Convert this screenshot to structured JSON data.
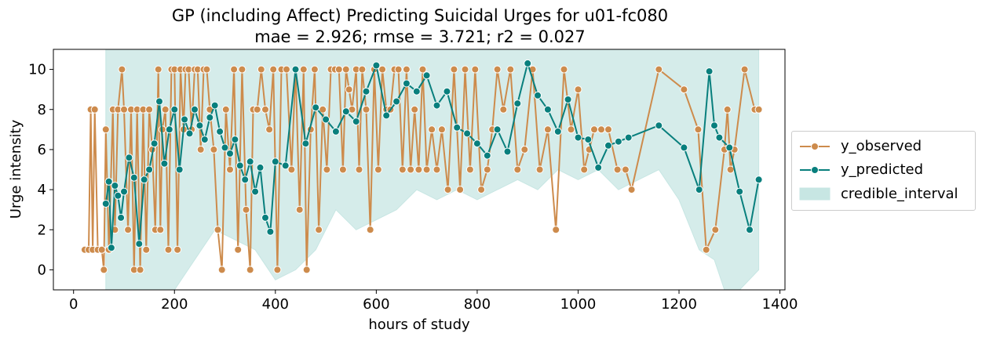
{
  "title_lines": [
    "GP (including Affect) Predicting Suicidal Urges for u01-fc080",
    "mae = 2.926; rmse = 3.721; r2 = 0.027"
  ],
  "chart_data": {
    "type": "line",
    "xlabel": "hours of study",
    "ylabel": "Urge intensity",
    "xlim": [
      -40,
      1410
    ],
    "ylim": [
      -1,
      11
    ],
    "x_ticks": [
      "0",
      "200",
      "400",
      "600",
      "800",
      "1000",
      "1200",
      "1400"
    ],
    "y_ticks": [
      "0",
      "2",
      "4",
      "6",
      "8",
      "10"
    ],
    "legend_position": "outside-right",
    "grid": false,
    "colors": {
      "observed": "#cd8b4c",
      "predicted": "#087f7d",
      "interval": "#c7e6e3"
    },
    "series": [
      {
        "name": "y_observed",
        "x": [
          22,
          30,
          34,
          38,
          42,
          48,
          56,
          60,
          64,
          70,
          78,
          82,
          88,
          96,
          100,
          108,
          114,
          120,
          126,
          132,
          138,
          144,
          150,
          156,
          162,
          168,
          172,
          176,
          182,
          188,
          194,
          200,
          206,
          212,
          218,
          222,
          228,
          234,
          240,
          246,
          252,
          258,
          264,
          270,
          278,
          286,
          294,
          302,
          310,
          318,
          326,
          334,
          342,
          350,
          356,
          364,
          372,
          380,
          388,
          396,
          404,
          412,
          422,
          432,
          440,
          448,
          456,
          462,
          470,
          478,
          486,
          494,
          502,
          510,
          518,
          526,
          534,
          540,
          546,
          552,
          560,
          566,
          572,
          580,
          588,
          596,
          604,
          612,
          620,
          628,
          636,
          644,
          652,
          660,
          668,
          676,
          684,
          692,
          700,
          710,
          720,
          730,
          742,
          754,
          766,
          776,
          786,
          796,
          808,
          820,
          830,
          840,
          852,
          866,
          880,
          894,
          910,
          924,
          940,
          956,
          972,
          986,
          1000,
          1012,
          1022,
          1032,
          1046,
          1060,
          1078,
          1094,
          1106,
          1160,
          1210,
          1238,
          1254,
          1272,
          1290,
          1296,
          1302,
          1310,
          1330,
          1350,
          1358
        ],
        "values": [
          1,
          1,
          8,
          1,
          8,
          1,
          1,
          0,
          7,
          1,
          8,
          2,
          8,
          10,
          8,
          2,
          8,
          0,
          8,
          0,
          8,
          1,
          8,
          6,
          2,
          10,
          2,
          7,
          8,
          1,
          10,
          10,
          1,
          10,
          7,
          10,
          10,
          7,
          10,
          10,
          6,
          10,
          10,
          8,
          6,
          2,
          0,
          8,
          5,
          10,
          1,
          10,
          3,
          0,
          8,
          8,
          10,
          8,
          7,
          10,
          0,
          10,
          10,
          5,
          10,
          3,
          10,
          0,
          7,
          10,
          2,
          8,
          5,
          10,
          10,
          10,
          5,
          10,
          9,
          8,
          10,
          5,
          10,
          8,
          2,
          10,
          5,
          10,
          8,
          8,
          10,
          10,
          5,
          10,
          5,
          8,
          5,
          10,
          5,
          7,
          5,
          7,
          4,
          10,
          4,
          10,
          5,
          10,
          4,
          5,
          7,
          10,
          8,
          10,
          5,
          6,
          10,
          5,
          7,
          2,
          10,
          7,
          9,
          5,
          6,
          7,
          7,
          7,
          5,
          5,
          4,
          10,
          9,
          7,
          1,
          2,
          6,
          8,
          5,
          6,
          10,
          8,
          8
        ]
      },
      {
        "name": "y_predicted",
        "x": [
          64,
          70,
          75,
          82,
          88,
          94,
          100,
          110,
          120,
          130,
          140,
          150,
          160,
          170,
          180,
          190,
          200,
          210,
          220,
          230,
          240,
          250,
          260,
          270,
          280,
          290,
          300,
          310,
          320,
          330,
          340,
          350,
          360,
          370,
          380,
          390,
          400,
          420,
          440,
          460,
          480,
          500,
          520,
          540,
          560,
          580,
          600,
          620,
          640,
          660,
          680,
          700,
          720,
          740,
          760,
          780,
          800,
          820,
          840,
          860,
          880,
          900,
          920,
          940,
          960,
          980,
          1000,
          1020,
          1040,
          1060,
          1080,
          1100,
          1160,
          1210,
          1240,
          1260,
          1270,
          1280,
          1300,
          1320,
          1340,
          1358
        ],
        "values": [
          3.3,
          4.4,
          1.1,
          4.2,
          3.7,
          2.6,
          3.9,
          5.6,
          4.6,
          1.3,
          4.5,
          5.0,
          6.3,
          8.4,
          5.3,
          7.0,
          8.0,
          5.0,
          7.5,
          6.8,
          8.0,
          7.2,
          6.5,
          7.6,
          8.2,
          6.9,
          6.1,
          5.8,
          6.5,
          5.2,
          4.5,
          5.4,
          3.9,
          5.1,
          2.6,
          1.9,
          5.4,
          5.2,
          10.0,
          6.3,
          8.1,
          7.5,
          6.9,
          7.9,
          7.4,
          8.9,
          10.2,
          7.7,
          8.4,
          9.3,
          8.9,
          9.7,
          8.2,
          8.9,
          7.1,
          6.8,
          6.3,
          5.7,
          7.0,
          5.9,
          8.3,
          10.3,
          8.7,
          8.0,
          6.9,
          8.5,
          6.6,
          6.5,
          5.1,
          6.2,
          6.4,
          6.6,
          7.2,
          6.1,
          4.0,
          9.9,
          7.2,
          6.6,
          6.1,
          3.9,
          2.0,
          4.5
        ]
      }
    ],
    "interval": {
      "name": "credible_interval",
      "x": [
        64,
        80,
        100,
        130,
        160,
        200,
        240,
        280,
        320,
        360,
        400,
        440,
        480,
        520,
        560,
        600,
        640,
        680,
        720,
        760,
        800,
        840,
        880,
        920,
        960,
        1000,
        1040,
        1080,
        1120,
        1160,
        1200,
        1240,
        1270,
        1290,
        1320,
        1358
      ],
      "upper": [
        11,
        11,
        11,
        11,
        11,
        11,
        11,
        11,
        11,
        11,
        11,
        11,
        11,
        11,
        11,
        11,
        11,
        11,
        11,
        11,
        11,
        11,
        11,
        11,
        11,
        11,
        11,
        11,
        11,
        11,
        11,
        11,
        11,
        11,
        11,
        11
      ],
      "lower": [
        -1,
        -1,
        -1,
        -1,
        -1,
        -1,
        0.5,
        2,
        1.5,
        1,
        -0.5,
        0,
        1,
        3,
        2,
        2.5,
        3,
        4,
        3.5,
        4,
        3.5,
        4,
        4.5,
        4,
        5,
        4.5,
        5,
        4,
        4.5,
        5,
        3.5,
        1,
        0.5,
        -1,
        -1,
        0
      ]
    },
    "legend": [
      "y_observed",
      "y_predicted",
      "credible_interval"
    ]
  }
}
